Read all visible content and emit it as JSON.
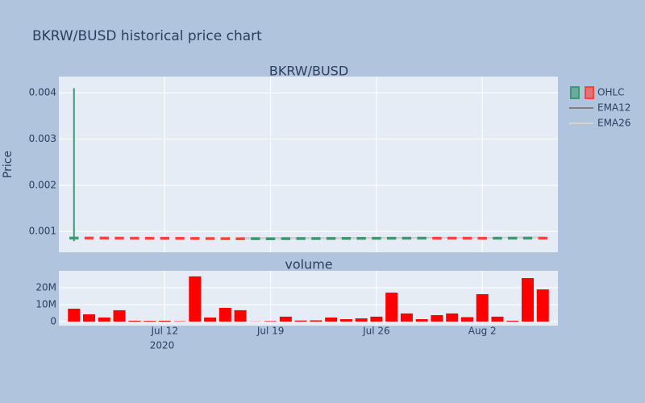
{
  "chart_data": {
    "type": "candlestick",
    "title": "BKRW/BUSD historical price chart",
    "price_title": "BKRW/BUSD",
    "volume_title": "volume",
    "ylabel": "Price",
    "x": [
      "2020-07-06",
      "2020-07-07",
      "2020-07-08",
      "2020-07-09",
      "2020-07-10",
      "2020-07-11",
      "2020-07-12",
      "2020-07-13",
      "2020-07-14",
      "2020-07-15",
      "2020-07-16",
      "2020-07-17",
      "2020-07-18",
      "2020-07-19",
      "2020-07-20",
      "2020-07-21",
      "2020-07-22",
      "2020-07-23",
      "2020-07-24",
      "2020-07-25",
      "2020-07-26",
      "2020-07-27",
      "2020-07-28",
      "2020-07-29",
      "2020-07-30",
      "2020-07-31",
      "2020-08-01",
      "2020-08-02",
      "2020-08-03",
      "2020-08-04",
      "2020-08-05",
      "2020-08-06"
    ],
    "xlim": [
      "2020-07-05",
      "2020-08-07"
    ],
    "xticks": [
      {
        "value": "2020-07-12",
        "label": "Jul 12"
      },
      {
        "value": "2020-07-19",
        "label": "Jul 19"
      },
      {
        "value": "2020-07-26",
        "label": "Jul 26"
      },
      {
        "value": "2020-08-02",
        "label": "Aug 2"
      }
    ],
    "xaxis_year": "2020",
    "open": [
      0.00085,
      0.00087,
      0.00087,
      0.000868,
      0.000867,
      0.000866,
      0.000865,
      0.000864,
      0.000862,
      0.00086,
      0.000858,
      0.000856,
      0.000855,
      0.000854,
      0.000855,
      0.000856,
      0.000858,
      0.00086,
      0.000861,
      0.000862,
      0.000863,
      0.000864,
      0.000865,
      0.000866,
      0.000867,
      0.000868,
      0.000867,
      0.000866,
      0.000865,
      0.000866,
      0.000867,
      0.000868
    ],
    "high": [
      0.0041,
      0.000872,
      0.000872,
      0.00087,
      0.000869,
      0.000868,
      0.000867,
      0.000866,
      0.000864,
      0.000862,
      0.00086,
      0.000858,
      0.000858,
      0.000857,
      0.000858,
      0.00086,
      0.000861,
      0.000862,
      0.000864,
      0.000865,
      0.000866,
      0.000867,
      0.000868,
      0.000869,
      0.00087,
      0.00087,
      0.000869,
      0.000868,
      0.000867,
      0.000868,
      0.000869,
      0.00087
    ],
    "low": [
      0.00079,
      0.000862,
      0.000864,
      0.000862,
      0.000861,
      0.00086,
      0.000859,
      0.000858,
      0.000856,
      0.000854,
      0.000852,
      0.000851,
      0.00085,
      0.000851,
      0.000852,
      0.000854,
      0.000856,
      0.000857,
      0.000858,
      0.000859,
      0.00086,
      0.000861,
      0.000862,
      0.000863,
      0.000864,
      0.000864,
      0.000863,
      0.000862,
      0.000862,
      0.000863,
      0.000864,
      0.000865
    ],
    "close": [
      0.00087,
      0.000866,
      0.000866,
      0.000864,
      0.000863,
      0.000862,
      0.000861,
      0.00086,
      0.000858,
      0.000856,
      0.000854,
      0.000853,
      0.000857,
      0.000855,
      0.000858,
      0.00086,
      0.00086,
      0.000862,
      0.000863,
      0.000864,
      0.000865,
      0.000866,
      0.000867,
      0.000868,
      0.000866,
      0.000866,
      0.000865,
      0.000864,
      0.000867,
      0.000868,
      0.000869,
      0.000867
    ],
    "increasing_color": "#3d9970",
    "decreasing_color": "#ff4136",
    "ohlc_name": "OHLC",
    "series": [
      {
        "name": "EMA12",
        "color": "#808080",
        "values": [
          null,
          null,
          null,
          null,
          null,
          null,
          null,
          null,
          null,
          null,
          null,
          0.000858,
          0.000858,
          0.000857,
          0.000857,
          0.000857,
          0.000858,
          0.000858,
          0.000859,
          0.00086,
          0.000861,
          0.000862,
          0.000862,
          0.000863,
          0.000864,
          0.000864,
          0.000864,
          0.000864,
          0.000864,
          0.000865,
          0.000865,
          0.000865
        ]
      },
      {
        "name": "EMA26",
        "color": "#d3d3d3",
        "values": [
          null,
          null,
          null,
          null,
          null,
          null,
          null,
          null,
          null,
          null,
          null,
          0.000862,
          0.000861,
          0.000861,
          0.00086,
          0.00086,
          0.00086,
          0.00086,
          0.00086,
          0.000861,
          0.000861,
          0.000861,
          0.000862,
          0.000862,
          0.000862,
          0.000863,
          0.000863,
          0.000863,
          0.000863,
          0.000864,
          0.000864,
          0.000864
        ]
      }
    ],
    "ylim": [
      0.00055,
      0.00435
    ],
    "yticks": [
      0.001,
      0.002,
      0.003,
      0.004
    ],
    "volume": [
      7600000,
      4300000,
      2400000,
      6700000,
      500000,
      400000,
      500000,
      200000,
      26700000,
      2400000,
      8100000,
      6700000,
      100000,
      300000,
      2900000,
      600000,
      700000,
      2400000,
      1400000,
      1900000,
      2900000,
      17100000,
      4800000,
      1400000,
      3800000,
      4800000,
      2600000,
      16200000,
      2900000,
      500000,
      25700000,
      19000000
    ],
    "volume_color": "#ff0000",
    "y2lim": [
      -2400000,
      30000000
    ],
    "y2ticks": [
      0,
      {
        "value": 10000000,
        "label": "10M"
      },
      {
        "value": 20000000,
        "label": "20M"
      }
    ],
    "grid": true
  }
}
